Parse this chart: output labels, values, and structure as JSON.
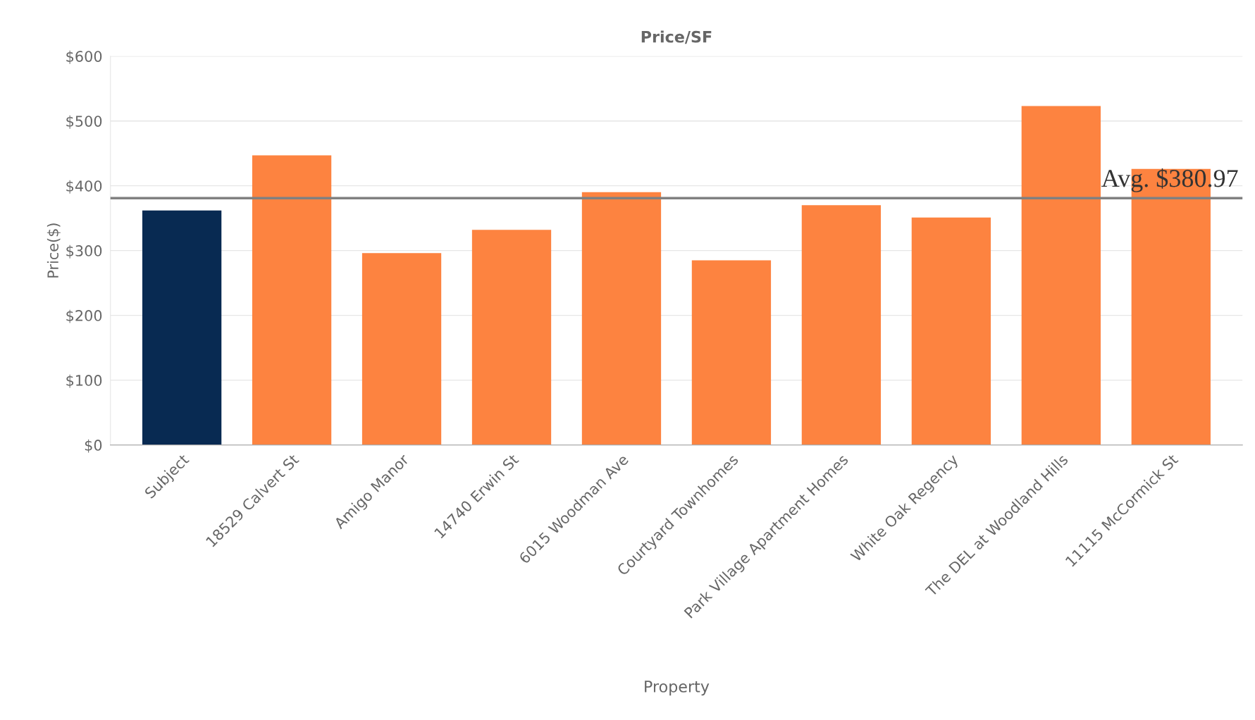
{
  "chart_data": {
    "type": "bar",
    "title": "Price/SF",
    "xlabel": "Property",
    "ylabel": "Price($)",
    "categories": [
      "Subject",
      "18529 Calvert St",
      "Amigo Manor",
      "14740 Erwin St",
      "6015 Woodman Ave",
      "Courtyard Townhomes",
      "Park Village Apartment Homes",
      "White Oak Regency",
      "The DEL at Woodland Hills",
      "11115 McCormick St"
    ],
    "values": [
      362,
      447,
      296,
      332,
      390,
      285,
      370,
      351,
      523,
      426
    ],
    "colors": [
      "#082a52",
      "#fd8340",
      "#fd8340",
      "#fd8340",
      "#fd8340",
      "#fd8340",
      "#fd8340",
      "#fd8340",
      "#fd8340",
      "#fd8340"
    ],
    "ylim": [
      0,
      600
    ],
    "yticks": [
      {
        "value": 0,
        "label": "$0"
      },
      {
        "value": 100,
        "label": "$100"
      },
      {
        "value": 200,
        "label": "$200"
      },
      {
        "value": 300,
        "label": "$300"
      },
      {
        "value": 400,
        "label": "$400"
      },
      {
        "value": 500,
        "label": "$500"
      },
      {
        "value": 600,
        "label": "$600"
      }
    ],
    "grid": "y",
    "ref_lines": [
      {
        "axis": "y",
        "value": 380.97,
        "label": "Avg. $380.97",
        "color": "#808080",
        "line_style": "solid"
      }
    ]
  }
}
